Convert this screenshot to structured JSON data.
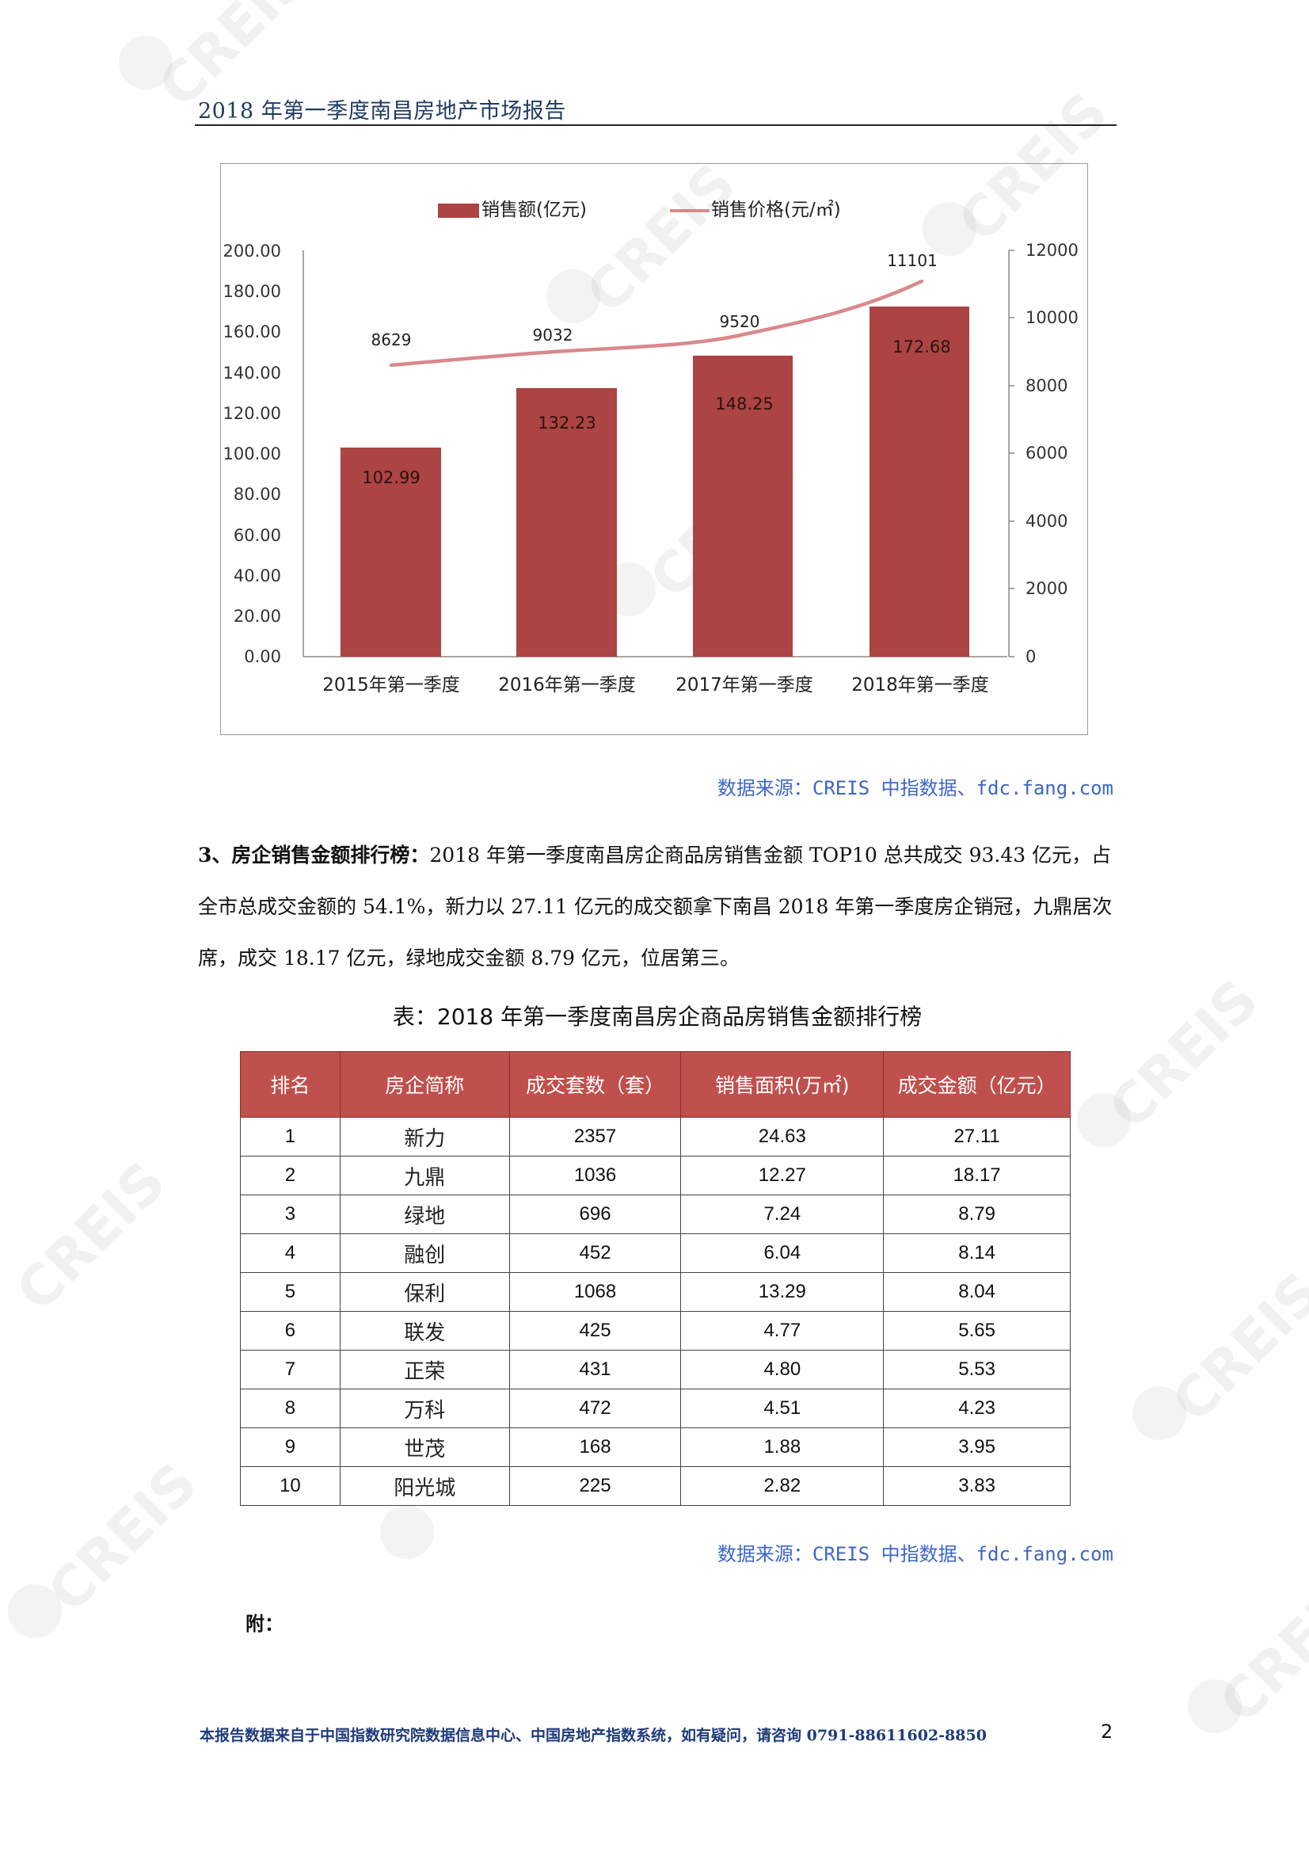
{
  "header": {
    "title": "2018 年第一季度南昌房地产市场报告"
  },
  "chart": {
    "legend": {
      "bar_label": "销售额(亿元)",
      "line_label": "销售价格(元/㎡)"
    },
    "source": "数据来源：CREIS 中指数据、fdc.fang.com"
  },
  "chart_data": {
    "type": "bar",
    "title": "",
    "categories": [
      "2015年第一季度",
      "2016年第一季度",
      "2017年第一季度",
      "2018年第一季度"
    ],
    "series": [
      {
        "name": "销售额(亿元)",
        "type": "bar",
        "axis": "left",
        "values": [
          102.99,
          132.23,
          148.25,
          172.68
        ],
        "color": "#ab4442"
      },
      {
        "name": "销售价格(元/㎡)",
        "type": "line",
        "axis": "right",
        "values": [
          8629,
          9032,
          9520,
          11101
        ],
        "color": "#d9898a"
      }
    ],
    "y_left": {
      "ylim": [
        0,
        200
      ],
      "ticks": [
        "0.00",
        "20.00",
        "40.00",
        "60.00",
        "80.00",
        "100.00",
        "120.00",
        "140.00",
        "160.00",
        "180.00",
        "200.00"
      ]
    },
    "y_right": {
      "ylim": [
        0,
        12000
      ],
      "ticks": [
        "0",
        "2000",
        "4000",
        "6000",
        "8000",
        "10000",
        "12000"
      ]
    },
    "xlabel": "",
    "ylabel": "",
    "legend_position": "top",
    "grid": false
  },
  "section3": {
    "heading": "3、房企销售金额排行榜：",
    "body": "2018 年第一季度南昌房企商品房销售金额 TOP10 总共成交 93.43 亿元，占全市总成交金额的 54.1%，新力以 27.11 亿元的成交额拿下南昌 2018 年第一季度房企销冠，九鼎居次席，成交 18.17 亿元，绿地成交金额 8.79 亿元，位居第三。"
  },
  "table": {
    "caption": "表：2018 年第一季度南昌房企商品房销售金额排行榜",
    "headers": [
      "排名",
      "房企简称",
      "成交套数（套）",
      "销售面积(万㎡)",
      "成交金额（亿元）"
    ],
    "rows": [
      [
        "1",
        "新力",
        "2357",
        "24.63",
        "27.11"
      ],
      [
        "2",
        "九鼎",
        "1036",
        "12.27",
        "18.17"
      ],
      [
        "3",
        "绿地",
        "696",
        "7.24",
        "8.79"
      ],
      [
        "4",
        "融创",
        "452",
        "6.04",
        "8.14"
      ],
      [
        "5",
        "保利",
        "1068",
        "13.29",
        "8.04"
      ],
      [
        "6",
        "联发",
        "425",
        "4.77",
        "5.65"
      ],
      [
        "7",
        "正荣",
        "431",
        "4.80",
        "5.53"
      ],
      [
        "8",
        "万科",
        "472",
        "4.51",
        "4.23"
      ],
      [
        "9",
        "世茂",
        "168",
        "1.88",
        "3.95"
      ],
      [
        "10",
        "阳光城",
        "225",
        "2.82",
        "3.83"
      ]
    ],
    "source": "数据来源：CREIS 中指数据、fdc.fang.com"
  },
  "appendix": "附：",
  "footer": {
    "text": "本报告数据来自于中国指数研究院数据信息中心、中国房地产指数系统，如有疑问，请咨询 0791-88611602-8850",
    "page_number": "2"
  },
  "watermark": "CREIS",
  "colors": {
    "bar": "#ab4442",
    "line": "#d9898a",
    "header_title": "#1f3b63",
    "source_link": "#3d66c6",
    "table_header": "#c0504d"
  }
}
